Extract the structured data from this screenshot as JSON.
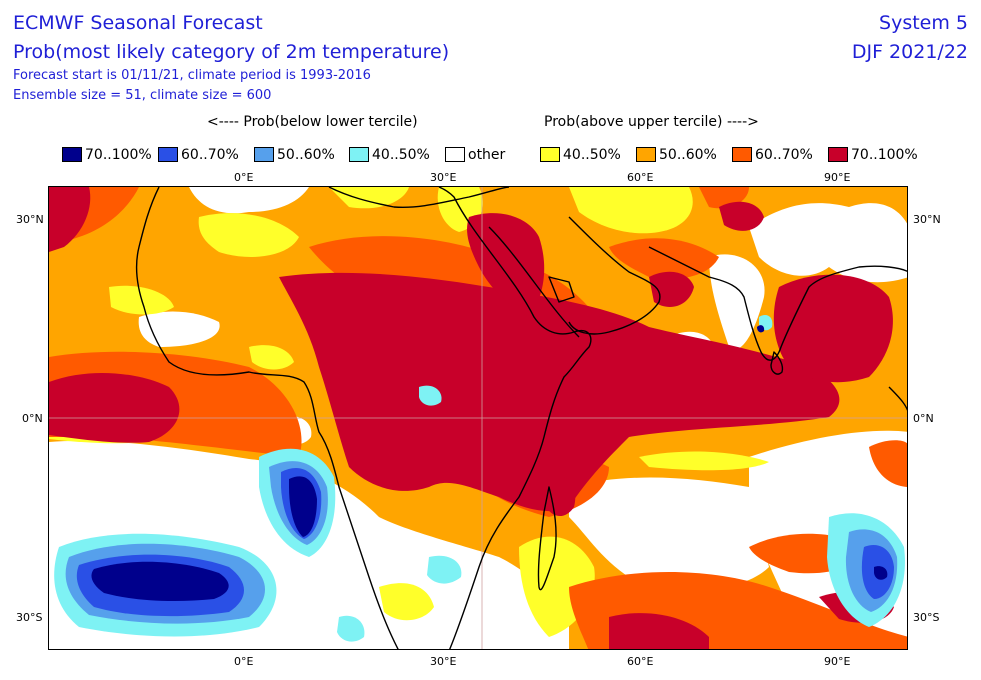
{
  "header": {
    "title": "ECMWF Seasonal Forecast",
    "subtitle": "Prob(most likely category of 2m temperature)",
    "forecast_start": "Forecast start is 01/11/21, climate period is 1993-2016",
    "ensemble": "Ensemble size = 51, climate size = 600",
    "system": "System 5",
    "season": "DJF 2021/22"
  },
  "legend": {
    "below_heading": "<---- Prob(below lower tercile)",
    "above_heading": "Prob(above upper tercile) ---->",
    "items": [
      {
        "label": "70..100%",
        "color": "#00008c"
      },
      {
        "label": "60..70%",
        "color": "#2a50e6"
      },
      {
        "label": "50..60%",
        "color": "#56a0ec"
      },
      {
        "label": "40..50%",
        "color": "#7ef2f4"
      },
      {
        "label": "other",
        "color": "#ffffff"
      },
      {
        "label": "40..50%",
        "color": "#ffff2a"
      },
      {
        "label": "50..60%",
        "color": "#ffa500"
      },
      {
        "label": "60..70%",
        "color": "#ff5a00"
      },
      {
        "label": "70..100%",
        "color": "#c8002a"
      }
    ]
  },
  "axes": {
    "lon_ticks": [
      "0°E",
      "30°E",
      "60°E",
      "90°E"
    ],
    "lat_ticks": [
      "30°N",
      "0°N",
      "30°S"
    ]
  }
}
